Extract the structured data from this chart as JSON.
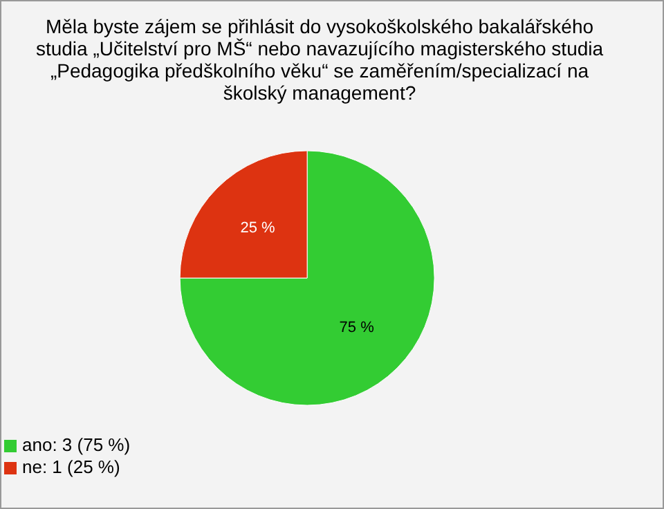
{
  "chart_data": {
    "type": "pie",
    "title": "Měla byste zájem se přihlásit do vysokoškolského bakalářského studia „Učitelství pro MŠ“ nebo navazujícího magisterského studia „Pedagogika předškolního věku“ se zaměřením/specializací na školský management?",
    "categories": [
      "ano: 3 (75 %)",
      "ne: 1 (25 %)"
    ],
    "values": [
      75,
      25
    ],
    "value_labels": [
      "75 %",
      "25 %"
    ],
    "colors": [
      "#33cc33",
      "#dd3311"
    ],
    "legend": "bottom left"
  }
}
